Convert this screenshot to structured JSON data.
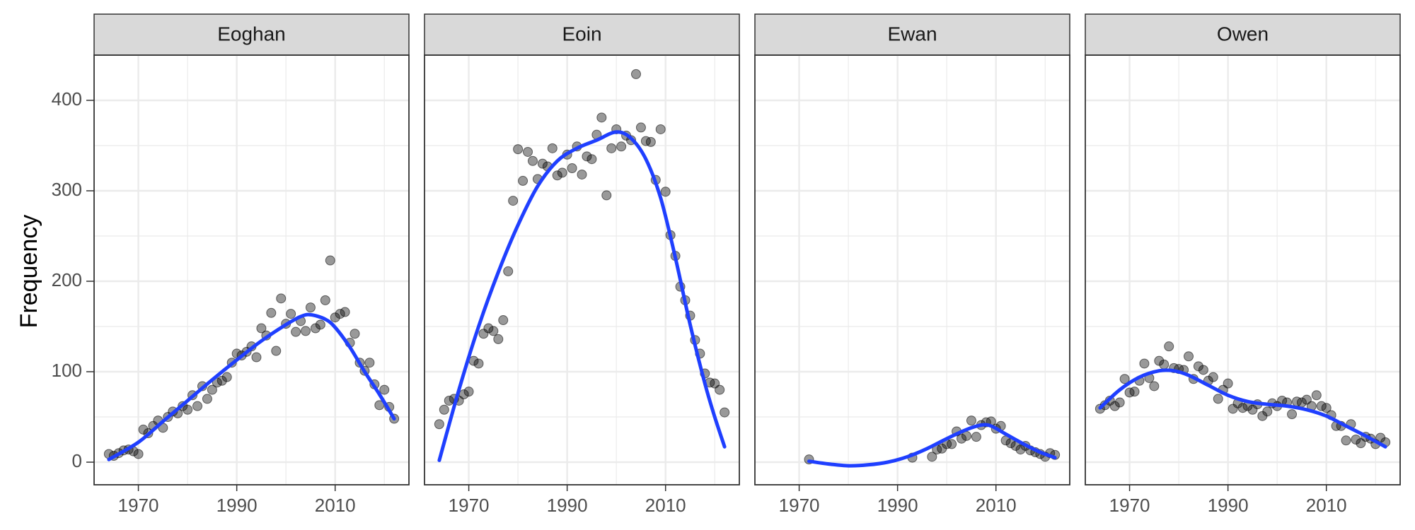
{
  "chart_data": {
    "type": "scatter",
    "ylabel": "Frequency",
    "xlabel": "",
    "xlim": [
      1961,
      2025
    ],
    "ylim": [
      -25,
      450
    ],
    "x_ticks": [
      1970,
      1990,
      2010
    ],
    "y_ticks": [
      0,
      100,
      200,
      300,
      400
    ],
    "grid": true,
    "colors": {
      "points": "#000000",
      "smooth": "#1f3fff",
      "strip_bg": "#d9d9d9",
      "grid": "#ebebeb",
      "panel_border": "#333333"
    },
    "panels": [
      {
        "title": "Eoghan",
        "points": [
          [
            1964,
            9
          ],
          [
            1965,
            7
          ],
          [
            1966,
            10
          ],
          [
            1967,
            13
          ],
          [
            1968,
            14
          ],
          [
            1969,
            12
          ],
          [
            1970,
            9
          ],
          [
            1971,
            36
          ],
          [
            1972,
            32
          ],
          [
            1973,
            40
          ],
          [
            1974,
            46
          ],
          [
            1975,
            38
          ],
          [
            1976,
            50
          ],
          [
            1977,
            56
          ],
          [
            1978,
            54
          ],
          [
            1979,
            62
          ],
          [
            1980,
            58
          ],
          [
            1981,
            74
          ],
          [
            1982,
            62
          ],
          [
            1983,
            84
          ],
          [
            1984,
            70
          ],
          [
            1985,
            80
          ],
          [
            1986,
            88
          ],
          [
            1987,
            90
          ],
          [
            1988,
            94
          ],
          [
            1989,
            110
          ],
          [
            1990,
            120
          ],
          [
            1991,
            118
          ],
          [
            1992,
            122
          ],
          [
            1993,
            128
          ],
          [
            1994,
            116
          ],
          [
            1995,
            148
          ],
          [
            1996,
            140
          ],
          [
            1997,
            165
          ],
          [
            1998,
            123
          ],
          [
            1999,
            181
          ],
          [
            2000,
            153
          ],
          [
            2001,
            164
          ],
          [
            2002,
            144
          ],
          [
            2003,
            156
          ],
          [
            2004,
            145
          ],
          [
            2005,
            171
          ],
          [
            2006,
            148
          ],
          [
            2007,
            152
          ],
          [
            2008,
            179
          ],
          [
            2009,
            223
          ],
          [
            2010,
            160
          ],
          [
            2011,
            164
          ],
          [
            2012,
            166
          ],
          [
            2013,
            132
          ],
          [
            2014,
            142
          ],
          [
            2015,
            110
          ],
          [
            2016,
            101
          ],
          [
            2017,
            110
          ],
          [
            2018,
            86
          ],
          [
            2019,
            63
          ],
          [
            2020,
            80
          ],
          [
            2021,
            61
          ],
          [
            2022,
            48
          ]
        ],
        "smooth": [
          [
            1964,
            3
          ],
          [
            1970,
            22
          ],
          [
            1975,
            45
          ],
          [
            1980,
            68
          ],
          [
            1985,
            91
          ],
          [
            1990,
            113
          ],
          [
            1995,
            134
          ],
          [
            2000,
            152
          ],
          [
            2003,
            161
          ],
          [
            2005,
            163
          ],
          [
            2008,
            158
          ],
          [
            2010,
            149
          ],
          [
            2013,
            127
          ],
          [
            2016,
            100
          ],
          [
            2019,
            75
          ],
          [
            2022,
            48
          ]
        ]
      },
      {
        "title": "Eoin",
        "points": [
          [
            1964,
            42
          ],
          [
            1965,
            58
          ],
          [
            1966,
            68
          ],
          [
            1967,
            70
          ],
          [
            1968,
            68
          ],
          [
            1969,
            75
          ],
          [
            1970,
            78
          ],
          [
            1971,
            112
          ],
          [
            1972,
            109
          ],
          [
            1973,
            142
          ],
          [
            1974,
            148
          ],
          [
            1975,
            145
          ],
          [
            1976,
            136
          ],
          [
            1977,
            157
          ],
          [
            1978,
            211
          ],
          [
            1979,
            289
          ],
          [
            1980,
            346
          ],
          [
            1981,
            311
          ],
          [
            1982,
            343
          ],
          [
            1983,
            333
          ],
          [
            1984,
            313
          ],
          [
            1985,
            330
          ],
          [
            1986,
            327
          ],
          [
            1987,
            347
          ],
          [
            1988,
            317
          ],
          [
            1989,
            320
          ],
          [
            1990,
            340
          ],
          [
            1991,
            325
          ],
          [
            1992,
            349
          ],
          [
            1993,
            318
          ],
          [
            1994,
            338
          ],
          [
            1995,
            335
          ],
          [
            1996,
            362
          ],
          [
            1997,
            381
          ],
          [
            1998,
            295
          ],
          [
            1999,
            347
          ],
          [
            2000,
            368
          ],
          [
            2001,
            349
          ],
          [
            2002,
            361
          ],
          [
            2003,
            356
          ],
          [
            2004,
            429
          ],
          [
            2005,
            370
          ],
          [
            2006,
            355
          ],
          [
            2007,
            354
          ],
          [
            2008,
            312
          ],
          [
            2009,
            368
          ],
          [
            2010,
            299
          ],
          [
            2011,
            251
          ],
          [
            2012,
            228
          ],
          [
            2013,
            194
          ],
          [
            2014,
            179
          ],
          [
            2015,
            162
          ],
          [
            2016,
            135
          ],
          [
            2017,
            120
          ],
          [
            2018,
            98
          ],
          [
            2019,
            88
          ],
          [
            2020,
            87
          ],
          [
            2021,
            80
          ],
          [
            2022,
            55
          ]
        ],
        "smooth": [
          [
            1964,
            2
          ],
          [
            1968,
            80
          ],
          [
            1972,
            150
          ],
          [
            1976,
            210
          ],
          [
            1980,
            262
          ],
          [
            1984,
            305
          ],
          [
            1988,
            333
          ],
          [
            1992,
            347
          ],
          [
            1996,
            356
          ],
          [
            2000,
            365
          ],
          [
            2003,
            358
          ],
          [
            2006,
            335
          ],
          [
            2009,
            292
          ],
          [
            2012,
            226
          ],
          [
            2015,
            152
          ],
          [
            2018,
            87
          ],
          [
            2020,
            50
          ],
          [
            2022,
            17
          ]
        ]
      },
      {
        "title": "Ewan",
        "points": [
          [
            1972,
            3
          ],
          [
            1993,
            5
          ],
          [
            1997,
            6
          ],
          [
            1998,
            14
          ],
          [
            1999,
            15
          ],
          [
            2000,
            20
          ],
          [
            2001,
            20
          ],
          [
            2002,
            34
          ],
          [
            2003,
            26
          ],
          [
            2004,
            29
          ],
          [
            2005,
            46
          ],
          [
            2006,
            28
          ],
          [
            2007,
            41
          ],
          [
            2008,
            44
          ],
          [
            2009,
            45
          ],
          [
            2010,
            37
          ],
          [
            2011,
            40
          ],
          [
            2012,
            24
          ],
          [
            2013,
            21
          ],
          [
            2014,
            18
          ],
          [
            2015,
            14
          ],
          [
            2016,
            18
          ],
          [
            2017,
            13
          ],
          [
            2018,
            11
          ],
          [
            2019,
            9
          ],
          [
            2020,
            6
          ],
          [
            2021,
            10
          ],
          [
            2022,
            8
          ]
        ],
        "smooth": [
          [
            1972,
            1
          ],
          [
            1976,
            -2
          ],
          [
            1980,
            -4
          ],
          [
            1984,
            -3
          ],
          [
            1988,
            0
          ],
          [
            1992,
            6
          ],
          [
            1996,
            15
          ],
          [
            2000,
            26
          ],
          [
            2004,
            36
          ],
          [
            2007,
            41
          ],
          [
            2009,
            40
          ],
          [
            2012,
            31
          ],
          [
            2016,
            19
          ],
          [
            2019,
            11
          ],
          [
            2022,
            5
          ]
        ]
      },
      {
        "title": "Owen",
        "points": [
          [
            1964,
            59
          ],
          [
            1965,
            63
          ],
          [
            1966,
            68
          ],
          [
            1967,
            62
          ],
          [
            1968,
            66
          ],
          [
            1969,
            92
          ],
          [
            1970,
            77
          ],
          [
            1971,
            78
          ],
          [
            1972,
            90
          ],
          [
            1973,
            109
          ],
          [
            1974,
            93
          ],
          [
            1975,
            84
          ],
          [
            1976,
            112
          ],
          [
            1977,
            108
          ],
          [
            1978,
            128
          ],
          [
            1979,
            104
          ],
          [
            1980,
            103
          ],
          [
            1981,
            102
          ],
          [
            1982,
            117
          ],
          [
            1983,
            92
          ],
          [
            1984,
            106
          ],
          [
            1985,
            102
          ],
          [
            1986,
            90
          ],
          [
            1987,
            94
          ],
          [
            1988,
            70
          ],
          [
            1989,
            80
          ],
          [
            1990,
            87
          ],
          [
            1991,
            59
          ],
          [
            1992,
            65
          ],
          [
            1993,
            60
          ],
          [
            1994,
            62
          ],
          [
            1995,
            58
          ],
          [
            1996,
            64
          ],
          [
            1997,
            51
          ],
          [
            1998,
            56
          ],
          [
            1999,
            65
          ],
          [
            2000,
            62
          ],
          [
            2001,
            68
          ],
          [
            2002,
            66
          ],
          [
            2003,
            53
          ],
          [
            2004,
            67
          ],
          [
            2005,
            66
          ],
          [
            2006,
            69
          ],
          [
            2007,
            62
          ],
          [
            2008,
            74
          ],
          [
            2009,
            62
          ],
          [
            2010,
            60
          ],
          [
            2011,
            52
          ],
          [
            2012,
            40
          ],
          [
            2013,
            40
          ],
          [
            2014,
            24
          ],
          [
            2015,
            42
          ],
          [
            2016,
            25
          ],
          [
            2017,
            21
          ],
          [
            2018,
            28
          ],
          [
            2019,
            26
          ],
          [
            2020,
            20
          ],
          [
            2021,
            27
          ],
          [
            2022,
            22
          ]
        ],
        "smooth": [
          [
            1964,
            60
          ],
          [
            1968,
            80
          ],
          [
            1972,
            94
          ],
          [
            1976,
            101
          ],
          [
            1979,
            101
          ],
          [
            1982,
            96
          ],
          [
            1986,
            85
          ],
          [
            1990,
            74
          ],
          [
            1994,
            67
          ],
          [
            1998,
            64
          ],
          [
            2002,
            62
          ],
          [
            2006,
            58
          ],
          [
            2010,
            51
          ],
          [
            2014,
            40
          ],
          [
            2018,
            29
          ],
          [
            2022,
            17
          ]
        ]
      }
    ]
  }
}
